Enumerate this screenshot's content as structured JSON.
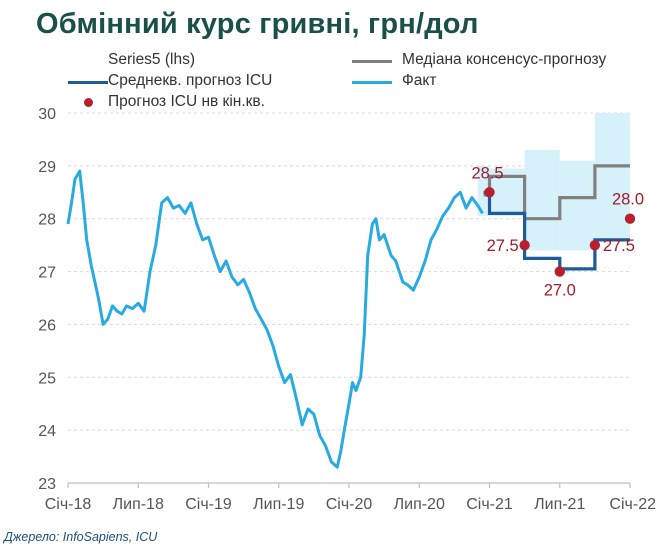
{
  "title": "Обмінний курс гривні, грн/дол",
  "source": "Джерело: InfoSapiens, ICU",
  "legend": [
    {
      "key": "series5",
      "label": "Series5 (lhs)",
      "color": "#ffffff"
    },
    {
      "key": "median",
      "label": "Медіана консенсус-прогнозу",
      "color": "#808080"
    },
    {
      "key": "icu_avg",
      "label": "Среднекв. прогноз ICU",
      "color": "#1d5b9a"
    },
    {
      "key": "fact",
      "label": "Факт",
      "color": "#29abe2"
    },
    {
      "key": "icu_eoq",
      "label": "Прогноз ICU нв кін.кв.",
      "color": "#b8202e"
    }
  ],
  "chart_data": {
    "type": "line",
    "x_ticks": [
      "Січ-18",
      "Лип-18",
      "Січ-19",
      "Лип-19",
      "Січ-20",
      "Лип-20",
      "Січ-21",
      "Лип-21",
      "Січ-22"
    ],
    "y_ticks": [
      "30",
      "29",
      "28",
      "27",
      "26",
      "25",
      "24",
      "23"
    ],
    "ylim": [
      23,
      30
    ],
    "xlim": [
      0,
      48
    ],
    "x_unit": "months since Січ-18",
    "grid": true,
    "range_band": {
      "name": "Series5 (lhs)",
      "color": "#d7f1fa",
      "steps": [
        {
          "x0": 35.0,
          "x1": 36.0,
          "low": 28.05,
          "high": 29.0
        },
        {
          "x0": 36.0,
          "x1": 39.0,
          "low": 28.05,
          "high": 28.95
        },
        {
          "x0": 39.0,
          "x1": 42.0,
          "low": 27.4,
          "high": 29.3
        },
        {
          "x0": 42.0,
          "x1": 45.0,
          "low": 27.4,
          "high": 29.1
        },
        {
          "x0": 45.0,
          "x1": 48.0,
          "low": 27.6,
          "high": 30.0
        }
      ]
    },
    "median": {
      "name": "Медіана консенсус-прогнозу",
      "color": "#808080",
      "steps": [
        {
          "x0": 35.5,
          "x1": 36.0,
          "y": 28.45
        },
        {
          "x0": 36.0,
          "x1": 39.0,
          "y": 28.8
        },
        {
          "x0": 39.0,
          "x1": 42.0,
          "y": 28.0
        },
        {
          "x0": 42.0,
          "x1": 45.0,
          "y": 28.4
        },
        {
          "x0": 45.0,
          "x1": 48.0,
          "y": 29.0
        }
      ]
    },
    "icu_avg": {
      "name": "Среднекв. прогноз ICU",
      "color": "#1d5b9a",
      "steps": [
        {
          "x0": 35.5,
          "x1": 36.0,
          "y": 28.5
        },
        {
          "x0": 36.0,
          "x1": 39.0,
          "y": 28.1
        },
        {
          "x0": 39.0,
          "x1": 42.0,
          "y": 27.25
        },
        {
          "x0": 42.0,
          "x1": 45.0,
          "y": 27.05
        },
        {
          "x0": 45.0,
          "x1": 48.0,
          "y": 27.6
        }
      ]
    },
    "fact": {
      "name": "Факт",
      "color": "#29abe2",
      "x": [
        0.0,
        0.3,
        0.6,
        1.0,
        1.3,
        1.6,
        2.0,
        2.3,
        2.6,
        3.0,
        3.4,
        3.8,
        4.2,
        4.6,
        5.0,
        5.5,
        6.0,
        6.5,
        7.0,
        7.5,
        8.0,
        8.5,
        9.0,
        9.5,
        10.0,
        10.5,
        11.0,
        11.5,
        12.0,
        12.5,
        13.0,
        13.5,
        14.0,
        14.5,
        15.0,
        15.5,
        16.0,
        16.5,
        17.0,
        17.5,
        18.0,
        18.5,
        19.0,
        19.5,
        20.0,
        20.5,
        21.0,
        21.5,
        22.0,
        22.5,
        23.0,
        23.3,
        23.6,
        24.0,
        24.3,
        24.6,
        25.0,
        25.3,
        25.6,
        26.0,
        26.3,
        26.6,
        27.0,
        27.3,
        27.6,
        28.0,
        28.3,
        28.6,
        29.0,
        29.5,
        30.0,
        30.5,
        31.0,
        31.5,
        32.0,
        32.5,
        33.0,
        33.5,
        34.0,
        34.5,
        35.0,
        35.4
      ],
      "y": [
        27.9,
        28.3,
        28.75,
        28.9,
        28.3,
        27.6,
        27.1,
        26.8,
        26.5,
        26.0,
        26.1,
        26.35,
        26.25,
        26.2,
        26.35,
        26.3,
        26.4,
        26.25,
        27.0,
        27.5,
        28.3,
        28.4,
        28.2,
        28.25,
        28.1,
        28.3,
        27.9,
        27.6,
        27.65,
        27.3,
        27.0,
        27.2,
        26.9,
        26.75,
        26.85,
        26.6,
        26.3,
        26.1,
        25.9,
        25.6,
        25.2,
        24.9,
        25.05,
        24.6,
        24.1,
        24.4,
        24.3,
        23.9,
        23.7,
        23.4,
        23.3,
        23.6,
        24.0,
        24.5,
        24.9,
        24.75,
        25.0,
        25.8,
        27.3,
        27.9,
        28.0,
        27.6,
        27.7,
        27.5,
        27.3,
        27.2,
        27.0,
        26.8,
        26.75,
        26.65,
        26.9,
        27.2,
        27.6,
        27.8,
        28.05,
        28.2,
        28.4,
        28.5,
        28.2,
        28.4,
        28.25,
        28.1
      ]
    },
    "icu_eoq": {
      "name": "Прогноз ICU нв кін.кв.",
      "color": "#b8202e",
      "points": [
        {
          "x": 36.0,
          "y": 28.5,
          "label": "28.5"
        },
        {
          "x": 39.0,
          "y": 27.5,
          "label": "27.5"
        },
        {
          "x": 42.0,
          "y": 27.0,
          "label": "27.0"
        },
        {
          "x": 45.0,
          "y": 27.5,
          "label": "27.5"
        },
        {
          "x": 48.0,
          "y": 28.0,
          "label": "28.0"
        }
      ]
    }
  }
}
